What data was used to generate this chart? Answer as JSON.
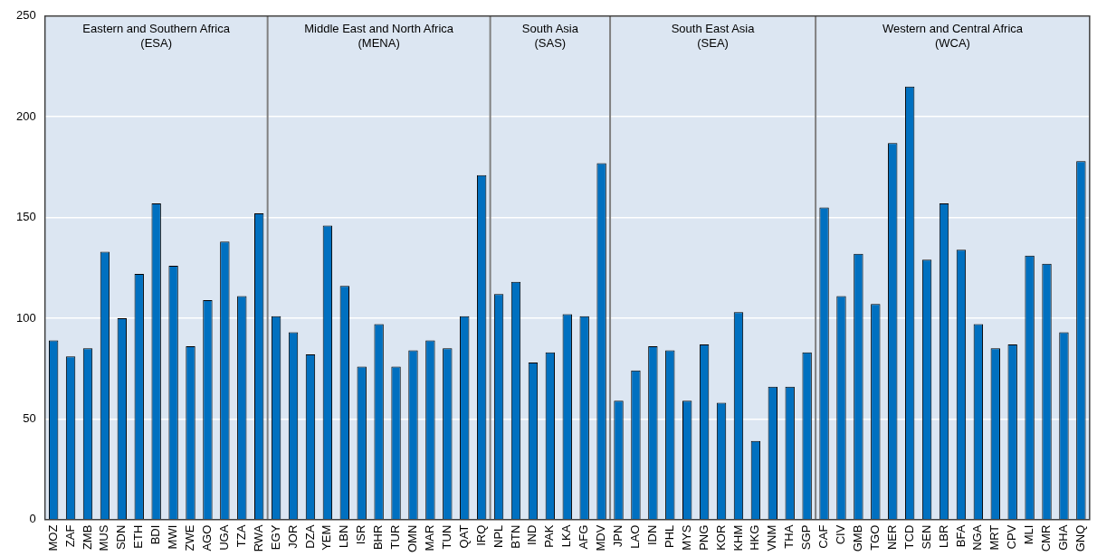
{
  "chart_data": {
    "type": "bar",
    "categories": [
      "MOZ",
      "ZAF",
      "ZMB",
      "MUS",
      "SDN",
      "ETH",
      "BDI",
      "MWI",
      "ZWE",
      "AGO",
      "UGA",
      "TZA",
      "RWA",
      "EGY",
      "JOR",
      "DZA",
      "YEM",
      "LBN",
      "ISR",
      "BHR",
      "TUR",
      "OMN",
      "MAR",
      "TUN",
      "QAT",
      "IRQ",
      "NPL",
      "BTN",
      "IND",
      "PAK",
      "LKA",
      "AFG",
      "MDV",
      "JPN",
      "LAO",
      "IDN",
      "PHL",
      "MYS",
      "PNG",
      "KOR",
      "KHM",
      "HKG",
      "VNM",
      "THA",
      "SGP",
      "CAF",
      "CIV",
      "GMB",
      "TGO",
      "NER",
      "TCD",
      "SEN",
      "LBR",
      "BFA",
      "NGA",
      "MRT",
      "CPV",
      "MLI",
      "CMR",
      "GHA",
      "GNQ"
    ],
    "values": [
      89,
      81,
      85,
      133,
      100,
      122,
      157,
      126,
      86,
      109,
      138,
      111,
      152,
      101,
      93,
      82,
      146,
      116,
      76,
      97,
      76,
      84,
      89,
      85,
      101,
      171,
      112,
      118,
      78,
      83,
      102,
      101,
      177,
      59,
      74,
      86,
      84,
      59,
      87,
      58,
      103,
      39,
      66,
      66,
      83,
      155,
      111,
      132,
      107,
      187,
      215,
      129,
      157,
      134,
      97,
      85,
      87,
      131,
      127,
      93,
      178
    ],
    "color": "#0070c0",
    "ylim": [
      0,
      250
    ],
    "yticks": [
      0,
      50,
      100,
      150,
      200,
      250
    ],
    "grid": "y",
    "bands": [
      {
        "axis": "x",
        "from": "MOZ",
        "to": "RWA",
        "label": "Eastern and Southern Africa\n(ESA)",
        "color": "#dce6f2"
      },
      {
        "axis": "x",
        "from": "EGY",
        "to": "IRQ",
        "label": "Middle East and North Africa\n(MENA)",
        "color": "#dce6f2"
      },
      {
        "axis": "x",
        "from": "NPL",
        "to": "MDV",
        "label": "South Asia\n(SAS)",
        "color": "#dce6f2"
      },
      {
        "axis": "x",
        "from": "JPN",
        "to": "SGP",
        "label": "South East Asia\n(SEA)",
        "color": "#dce6f2"
      },
      {
        "axis": "x",
        "from": "CAF",
        "to": "GNQ",
        "label": "Western and Central Africa\n(WCA)",
        "color": "#dce6f2"
      }
    ]
  }
}
